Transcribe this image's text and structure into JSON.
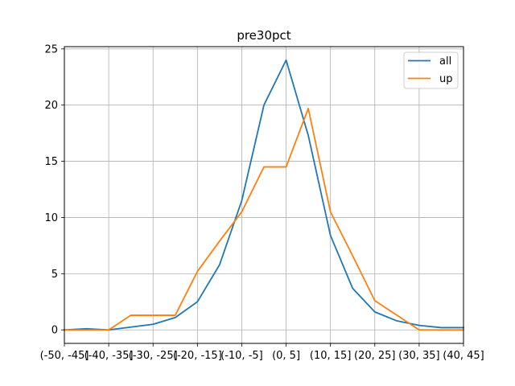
{
  "chart_data": {
    "type": "line",
    "title": "pre30pct",
    "xlabel": "",
    "ylabel": "",
    "categories": [
      "(-50, -45]",
      "(-45, -40]",
      "(-40, -35]",
      "(-35, -30]",
      "(-30, -25]",
      "(-25, -20]",
      "(-20, -15]",
      "(-15, -10]",
      "(-10, -5]",
      "(-5, 0]",
      "(0, 5]",
      "(5, 10]",
      "(10, 15]",
      "(15, 20]",
      "(20, 25]",
      "(25, 30]",
      "(30, 35]",
      "(35, 40]",
      "(40, 45]"
    ],
    "x_tick_labels": [
      "(-50, -45]",
      "(-40, -35]",
      "(-30, -25]",
      "(-20, -15]",
      "(-10, -5]",
      "(0, 5]",
      "(10, 15]",
      "(20, 25]",
      "(30, 35]",
      "(40, 45]"
    ],
    "y_ticks": [
      0,
      5,
      10,
      15,
      20,
      25
    ],
    "ylim": [
      -1.2,
      25.2
    ],
    "grid": true,
    "legend_position": "top-right",
    "series": [
      {
        "name": "all",
        "color": "#1f77b4",
        "values": [
          0.0,
          0.1,
          0.0,
          0.25,
          0.5,
          1.1,
          2.5,
          5.8,
          11.5,
          20.0,
          24.0,
          17.3,
          8.4,
          3.7,
          1.6,
          0.8,
          0.4,
          0.2,
          0.2
        ]
      },
      {
        "name": "up",
        "color": "#ff7f0e",
        "values": [
          0.0,
          0.0,
          0.0,
          1.3,
          1.3,
          1.3,
          5.2,
          7.9,
          10.5,
          14.5,
          14.5,
          19.7,
          10.5,
          6.6,
          2.6,
          1.3,
          0.0,
          0.0,
          0.0
        ]
      }
    ]
  }
}
